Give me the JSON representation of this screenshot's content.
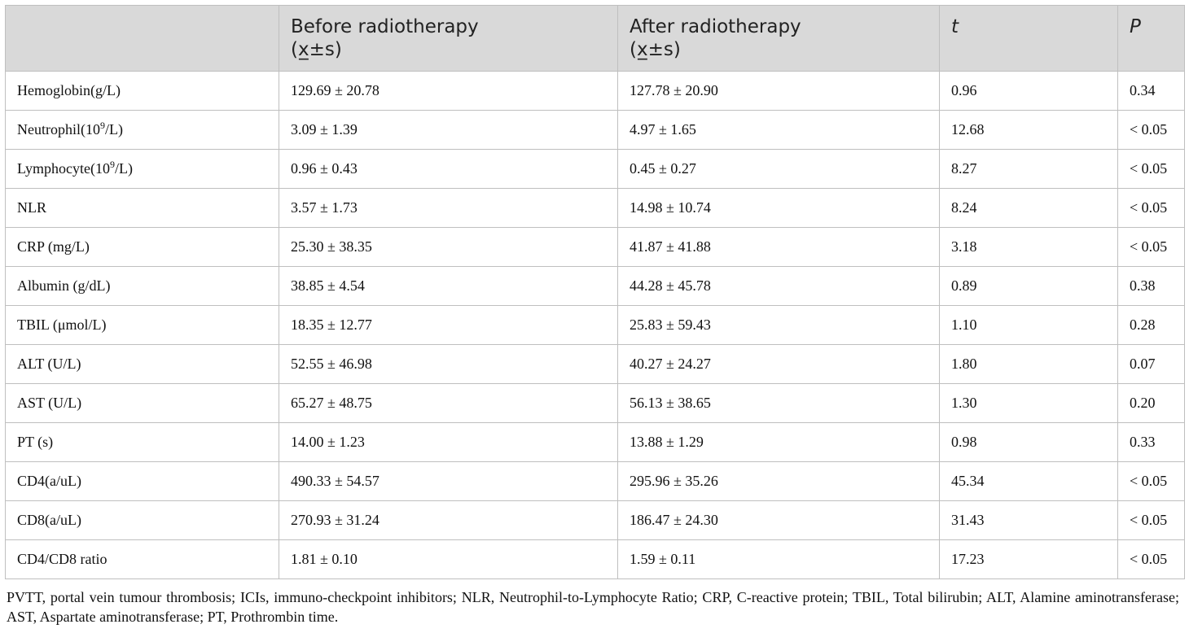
{
  "table": {
    "headers": [
      {
        "line1": "",
        "line2": ""
      },
      {
        "line1": "Before radiotherapy",
        "line2": "(x̲±s)"
      },
      {
        "line1": "After radiotherapy",
        "line2": "(x̲±s)"
      },
      {
        "line1": "t",
        "line2": ""
      },
      {
        "line1": "P",
        "line2": ""
      }
    ],
    "rows": [
      {
        "label": "Hemoglobin(g/L)",
        "label_base": "",
        "label_sup": "",
        "label_tail": "",
        "before": "129.69 ± 20.78",
        "after": "127.78 ± 20.90",
        "t": "0.96",
        "p": "0.34"
      },
      {
        "label": "",
        "label_base": "Neutrophil(10",
        "label_sup": "9",
        "label_tail": "/L)",
        "before": "3.09 ± 1.39",
        "after": "4.97 ± 1.65",
        "t": "12.68",
        "p": "< 0.05"
      },
      {
        "label": "",
        "label_base": "Lymphocyte(10",
        "label_sup": "9",
        "label_tail": "/L)",
        "before": "0.96 ± 0.43",
        "after": "0.45 ± 0.27",
        "t": "8.27",
        "p": "< 0.05"
      },
      {
        "label": "NLR",
        "label_base": "",
        "label_sup": "",
        "label_tail": "",
        "before": "3.57 ± 1.73",
        "after": "14.98 ± 10.74",
        "t": "8.24",
        "p": "< 0.05"
      },
      {
        "label": "CRP (mg/L)",
        "label_base": "",
        "label_sup": "",
        "label_tail": "",
        "before": "25.30 ± 38.35",
        "after": "41.87 ± 41.88",
        "t": "3.18",
        "p": "< 0.05"
      },
      {
        "label": "Albumin (g/dL)",
        "label_base": "",
        "label_sup": "",
        "label_tail": "",
        "before": "38.85 ± 4.54",
        "after": "44.28 ± 45.78",
        "t": "0.89",
        "p": "0.38"
      },
      {
        "label": "TBIL (μmol/L)",
        "label_base": "",
        "label_sup": "",
        "label_tail": "",
        "before": "18.35 ± 12.77",
        "after": "25.83 ± 59.43",
        "t": "1.10",
        "p": "0.28"
      },
      {
        "label": "ALT (U/L)",
        "label_base": "",
        "label_sup": "",
        "label_tail": "",
        "before": "52.55 ± 46.98",
        "after": "40.27 ± 24.27",
        "t": "1.80",
        "p": "0.07"
      },
      {
        "label": "AST (U/L)",
        "label_base": "",
        "label_sup": "",
        "label_tail": "",
        "before": "65.27 ± 48.75",
        "after": "56.13 ± 38.65",
        "t": "1.30",
        "p": "0.20"
      },
      {
        "label": "PT (s)",
        "label_base": "",
        "label_sup": "",
        "label_tail": "",
        "before": "14.00 ± 1.23",
        "after": "13.88 ± 1.29",
        "t": "0.98",
        "p": "0.33"
      },
      {
        "label": "CD4(a/uL)",
        "label_base": "",
        "label_sup": "",
        "label_tail": "",
        "before": "490.33 ± 54.57",
        "after": "295.96 ± 35.26",
        "t": "45.34",
        "p": "< 0.05"
      },
      {
        "label": "CD8(a/uL)",
        "label_base": "",
        "label_sup": "",
        "label_tail": "",
        "before": "270.93 ± 31.24",
        "after": "186.47 ± 24.30",
        "t": "31.43",
        "p": "< 0.05"
      },
      {
        "label": "CD4/CD8 ratio",
        "label_base": "",
        "label_sup": "",
        "label_tail": "",
        "before": "1.81 ± 0.10",
        "after": "1.59 ± 0.11",
        "t": "17.23",
        "p": "< 0.05"
      }
    ]
  },
  "footnote": "PVTT, portal vein tumour thrombosis; ICIs, immuno-checkpoint inhibitors; NLR, Neutrophil-to-Lymphocyte Ratio; CRP, C-reactive protein; TBIL, Total bilirubin; ALT, Alamine aminotransferase; AST, Aspartate aminotransferase; PT, Prothrombin time."
}
